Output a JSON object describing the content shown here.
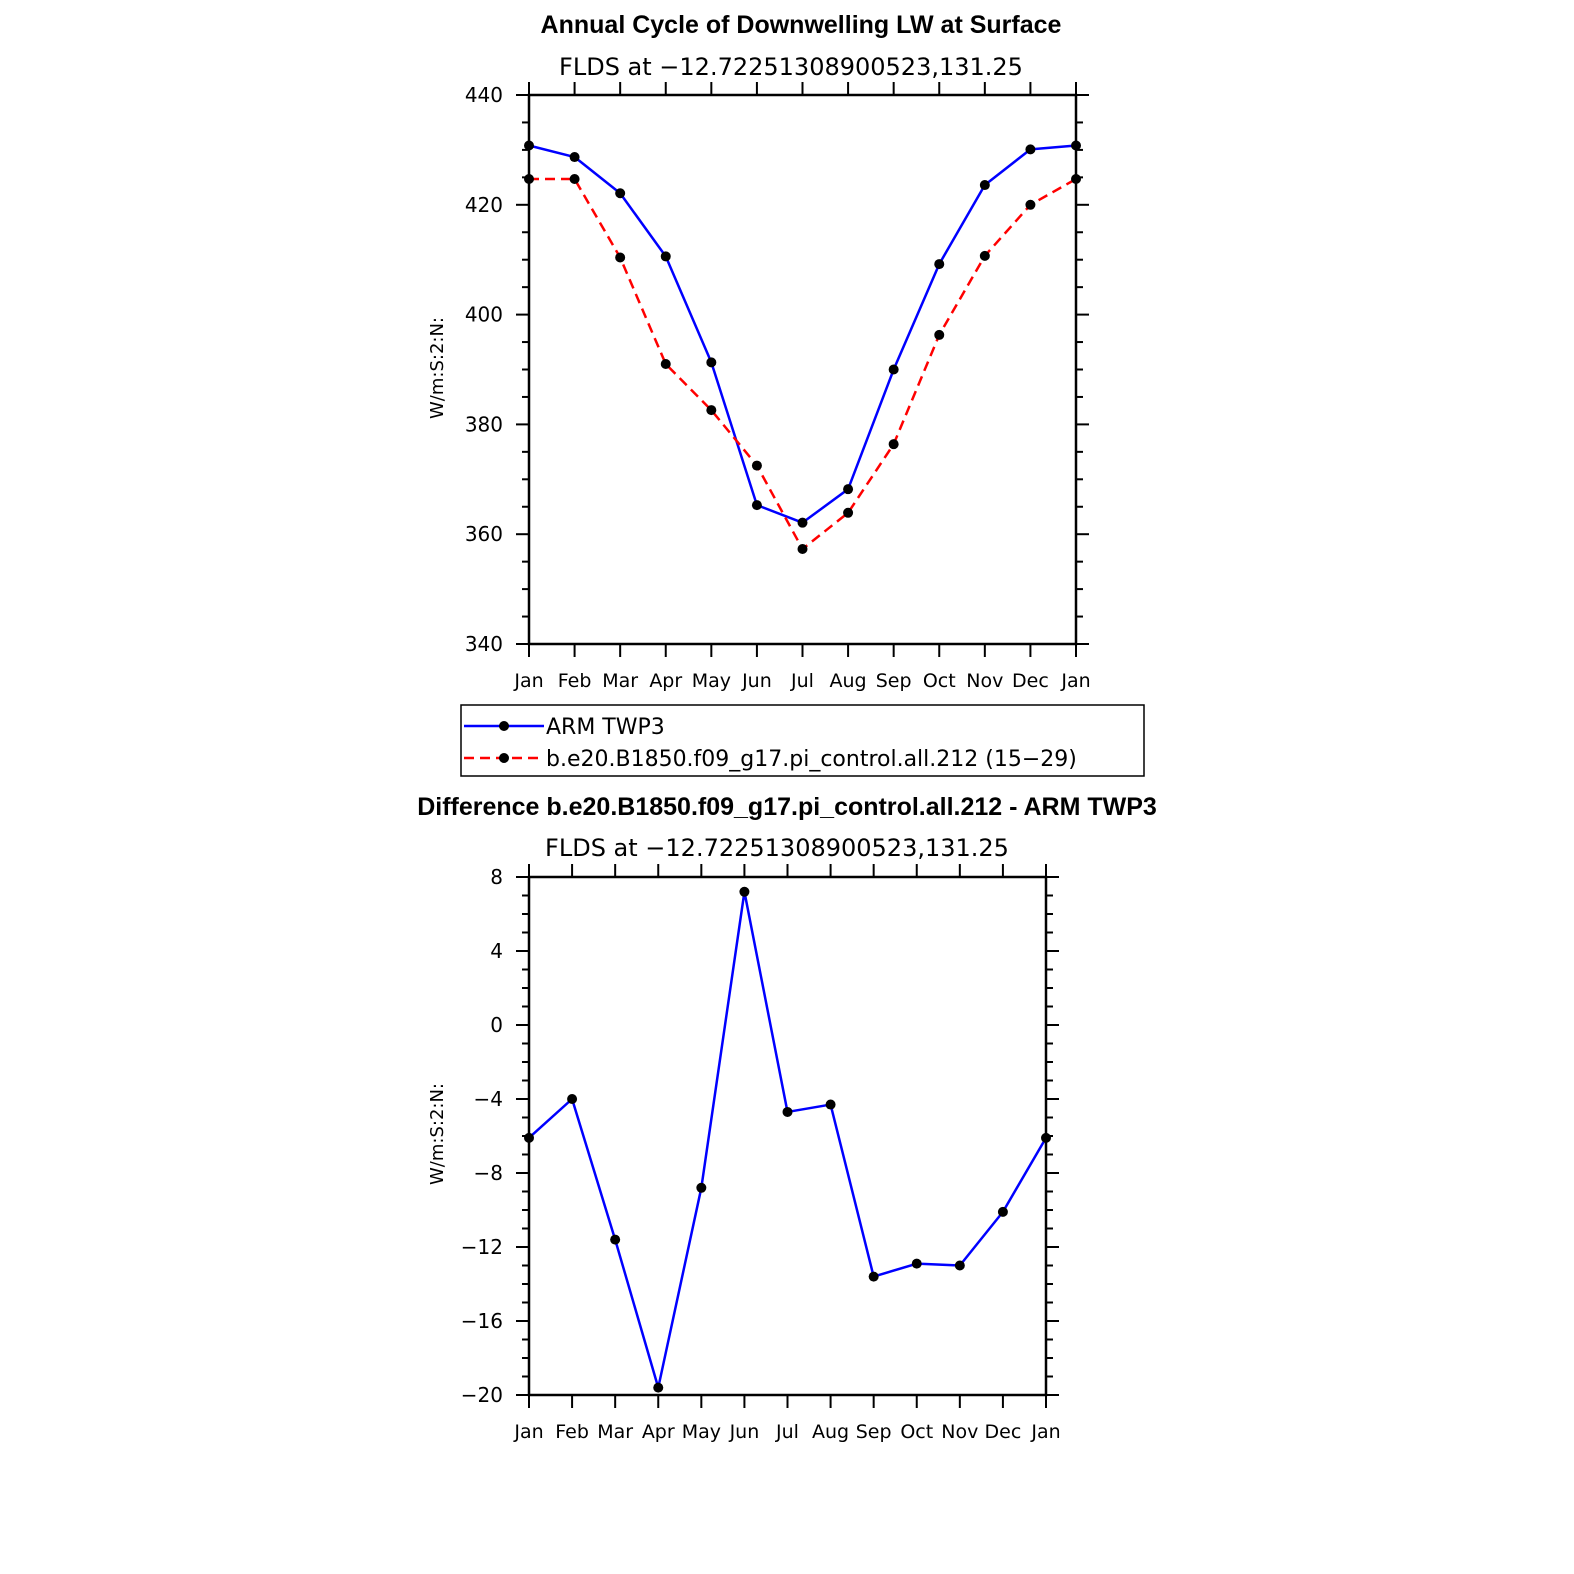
{
  "chart_data": [
    {
      "type": "line",
      "title": "Annual Cycle of Downwelling LW at Surface",
      "subtitle": "FLDS at −12.72251308900523,131.25",
      "ylabel": "W/m:S:2:N:",
      "ylim": [
        340,
        440
      ],
      "yticks": [
        "440",
        "420",
        "400",
        "380",
        "360",
        "340"
      ],
      "ytick_values": [
        440,
        420,
        400,
        380,
        360,
        340
      ],
      "categories": [
        "Jan",
        "Feb",
        "Mar",
        "Apr",
        "May",
        "Jun",
        "Jul",
        "Aug",
        "Sep",
        "Oct",
        "Nov",
        "Dec",
        "Jan"
      ],
      "series": [
        {
          "name": "ARM TWP3",
          "color": "#0000ff",
          "dash": "solid",
          "values": [
            430.8,
            428.7,
            422.1,
            410.6,
            391.3,
            365.3,
            362.1,
            368.2,
            390.0,
            409.2,
            423.6,
            430.1,
            430.8
          ]
        },
        {
          "name": "b.e20.B1850.f09_g17.pi_control.all.212 (15−29)",
          "color": "#ff0000",
          "dash": "dashed",
          "values": [
            424.7,
            424.7,
            410.4,
            391.0,
            382.6,
            372.5,
            357.3,
            363.9,
            376.4,
            396.3,
            410.7,
            420.0,
            424.7
          ]
        }
      ],
      "legend_position": "below"
    },
    {
      "type": "line",
      "title": "Difference b.e20.B1850.f09_g17.pi_control.all.212 - ARM TWP3",
      "subtitle": "FLDS at −12.72251308900523,131.25",
      "ylabel": "W/m:S:2:N:",
      "ylim": [
        -20,
        8
      ],
      "yticks": [
        "8",
        "4",
        "0",
        "−4",
        "−8",
        "−12",
        "−16",
        "−20"
      ],
      "ytick_values": [
        8,
        4,
        0,
        -4,
        -8,
        -12,
        -16,
        -20
      ],
      "categories": [
        "Jan",
        "Feb",
        "Mar",
        "Apr",
        "May",
        "Jun",
        "Jul",
        "Aug",
        "Sep",
        "Oct",
        "Nov",
        "Dec",
        "Jan"
      ],
      "series": [
        {
          "color": "#0000ff",
          "dash": "solid",
          "values": [
            -6.1,
            -4.0,
            -11.6,
            -19.6,
            -8.8,
            7.2,
            -4.7,
            -4.3,
            -13.6,
            -12.9,
            -13.0,
            -10.1,
            -6.1
          ]
        }
      ]
    }
  ]
}
